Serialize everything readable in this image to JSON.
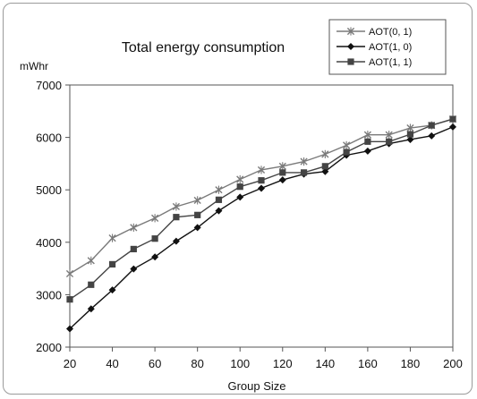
{
  "chart_data": {
    "type": "line",
    "title": "Total energy consumption",
    "ylabel": "mWhr",
    "xlabel": "Group Size",
    "xlim": [
      20,
      200
    ],
    "ylim": [
      2000,
      7000
    ],
    "xticks": [
      20,
      40,
      60,
      80,
      100,
      120,
      140,
      160,
      180,
      200
    ],
    "yticks": [
      2000,
      3000,
      4000,
      5000,
      6000,
      7000
    ],
    "grid": false,
    "legend_position": "top-right",
    "x": [
      20,
      30,
      40,
      50,
      60,
      70,
      80,
      90,
      100,
      110,
      120,
      130,
      140,
      150,
      160,
      170,
      180,
      190,
      200
    ],
    "series": [
      {
        "name": "AOT(0, 1)",
        "marker": "x",
        "color": "#7a7a7a",
        "values": [
          3400,
          3650,
          4080,
          4280,
          4460,
          4680,
          4800,
          5000,
          5200,
          5380,
          5450,
          5540,
          5680,
          5850,
          6050,
          6050,
          6180,
          6230,
          6350
        ]
      },
      {
        "name": "AOT(1, 0)",
        "marker": "diamond",
        "color": "#111111",
        "values": [
          2350,
          2730,
          3090,
          3490,
          3720,
          4020,
          4280,
          4600,
          4860,
          5030,
          5190,
          5300,
          5350,
          5660,
          5740,
          5880,
          5960,
          6030,
          6200
        ]
      },
      {
        "name": "AOT(1, 1)",
        "marker": "square",
        "color": "#444444",
        "values": [
          2910,
          3190,
          3580,
          3870,
          4070,
          4480,
          4520,
          4810,
          5060,
          5180,
          5330,
          5330,
          5450,
          5720,
          5920,
          5920,
          6060,
          6230,
          6350
        ]
      }
    ]
  }
}
